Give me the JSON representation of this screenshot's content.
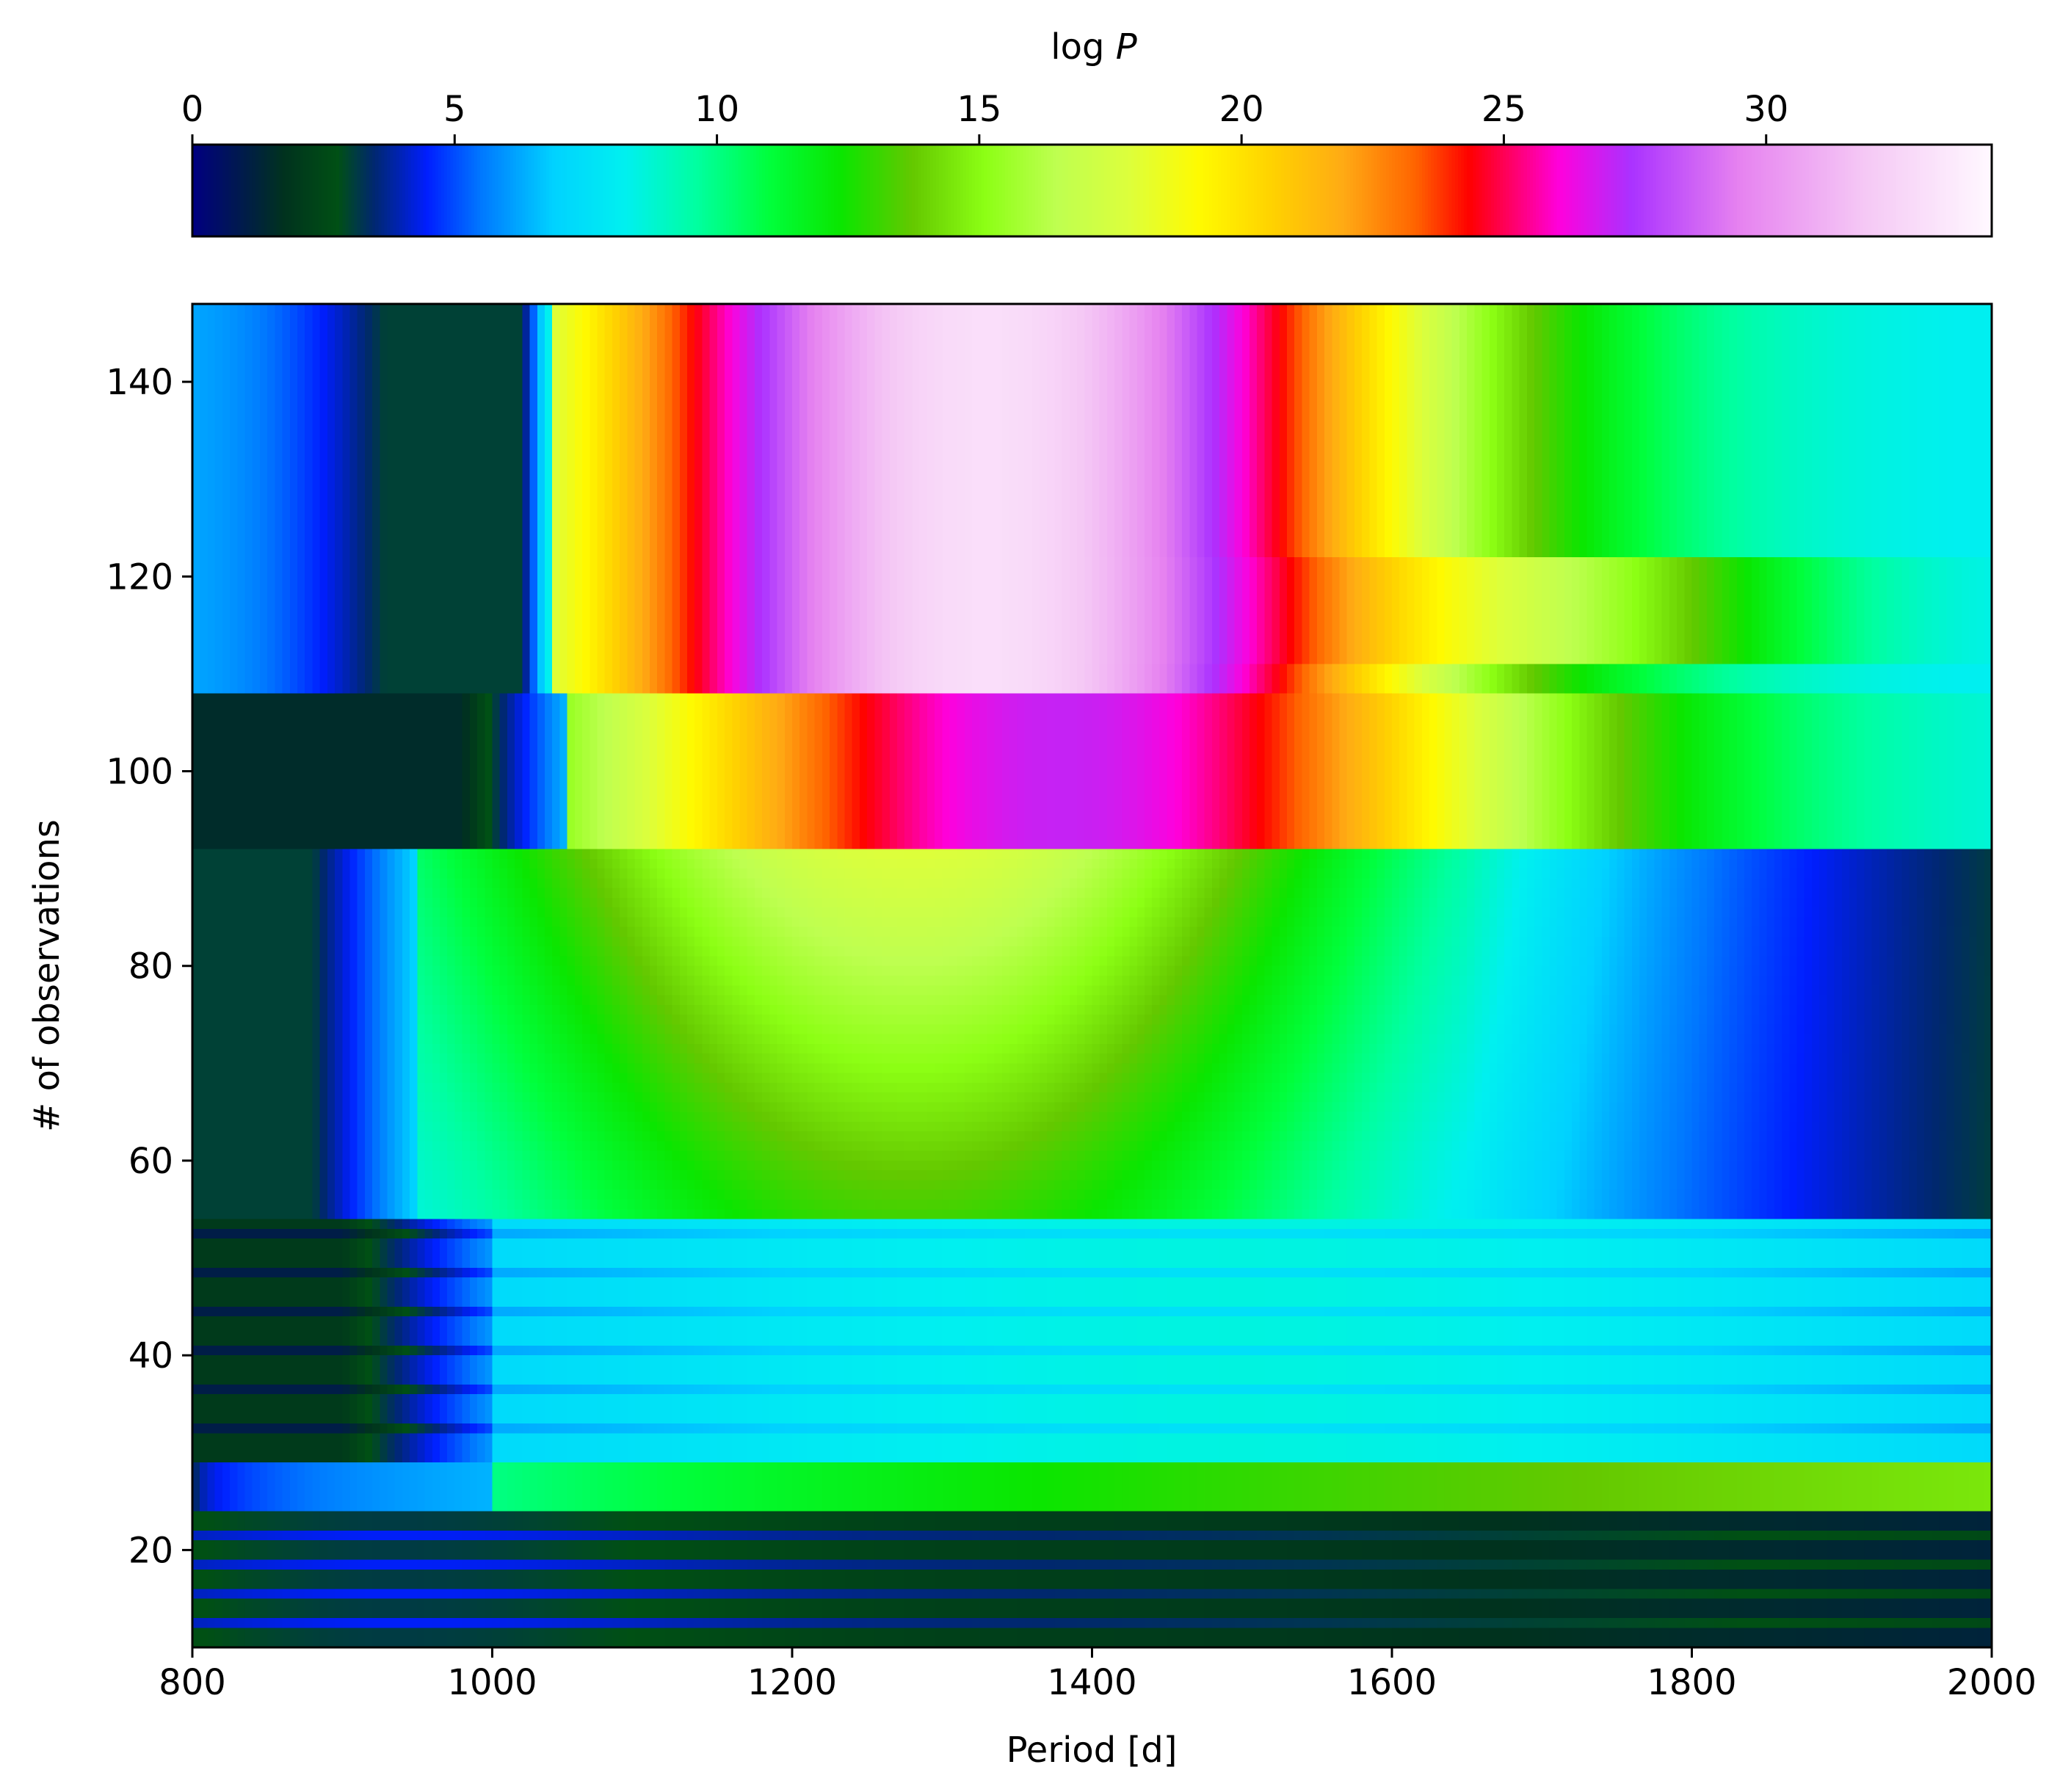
{
  "chart_data": {
    "type": "heatmap",
    "colormap": "gist_ncar",
    "xlabel": "Period [d]",
    "ylabel": "# of observations",
    "colorbar_label": "log P",
    "xlim": [
      800,
      2000
    ],
    "ylim": [
      10,
      148
    ],
    "clim": [
      0,
      34.3
    ],
    "x_ticks": [
      "800",
      "1000",
      "1200",
      "1400",
      "1600",
      "1800",
      "2000"
    ],
    "y_ticks": [
      "20",
      "40",
      "60",
      "80",
      "100",
      "120",
      "140"
    ],
    "colorbar_ticks": [
      "0",
      "5",
      "10",
      "15",
      "20",
      "25",
      "30"
    ],
    "colorbar_position": "top",
    "grid": false,
    "description_of_field": "log P over period (x) and number of observations (y); a strong peak near 1200-1550 d that grows with observation count above ~92 observations",
    "features": [
      {
        "obs_range": [
          10,
          23
        ],
        "peak_period": 1300,
        "peak_logP": 3
      },
      {
        "obs_range": [
          24,
          28
        ],
        "peak_period": 1500,
        "peak_logP": 14
      },
      {
        "obs_range": [
          29,
          53
        ],
        "peak_period": 1500,
        "peak_logP": 8
      },
      {
        "obs_range": [
          54,
          91
        ],
        "peak_period": 1300,
        "peak_logP": 18
      },
      {
        "obs_range": [
          92,
          107
        ],
        "peak_period": 1350,
        "peak_logP": 27
      },
      {
        "obs_range": [
          108,
          148
        ],
        "peak_period": 1300,
        "peak_logP": 32
      }
    ]
  }
}
